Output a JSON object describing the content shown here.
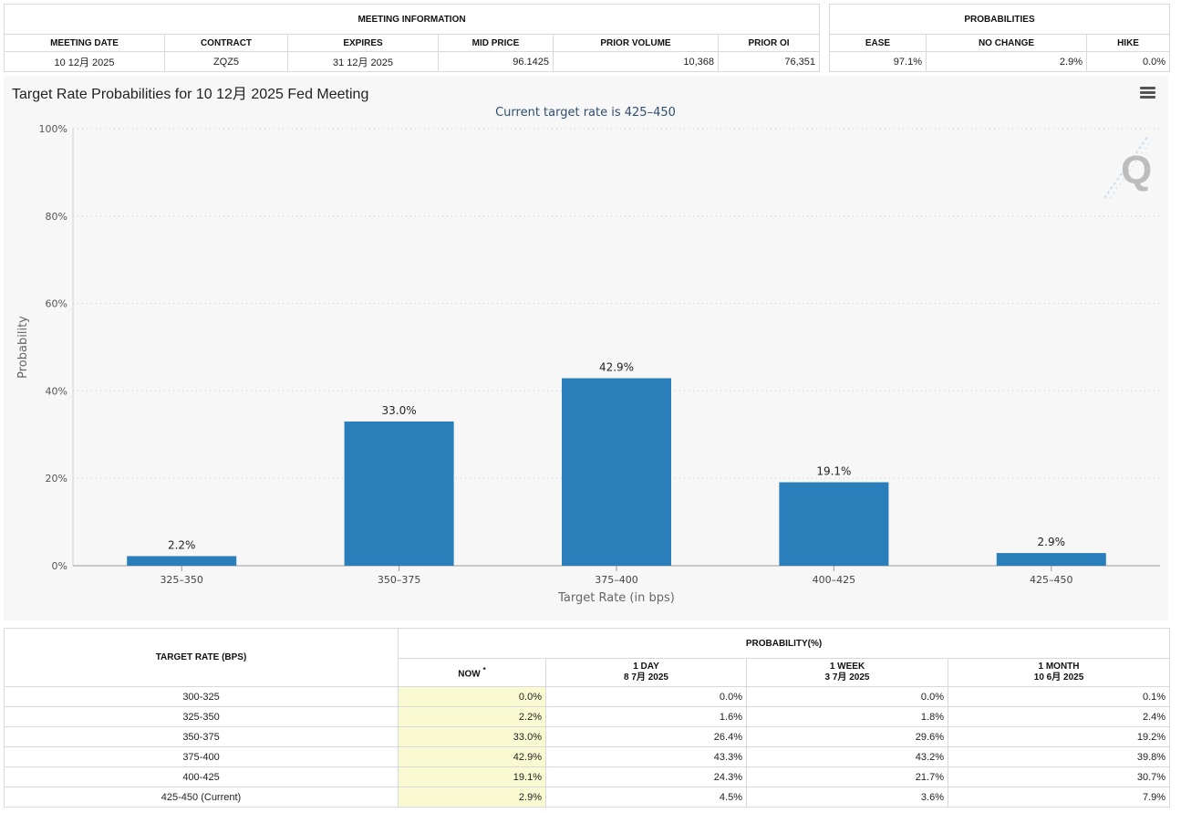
{
  "meeting_info": {
    "title": "MEETING INFORMATION",
    "headers": [
      "MEETING DATE",
      "CONTRACT",
      "EXPIRES",
      "MID PRICE",
      "PRIOR VOLUME",
      "PRIOR OI"
    ],
    "values": [
      "10 12月 2025",
      "ZQZ5",
      "31 12月 2025",
      "96.1425",
      "10,368",
      "76,351"
    ]
  },
  "probabilities": {
    "title": "PROBABILITIES",
    "headers": [
      "EASE",
      "NO CHANGE",
      "HIKE"
    ],
    "values": [
      "97.1%",
      "2.9%",
      "0.0%"
    ]
  },
  "chart": {
    "title": "Target Rate Probabilities for 10 12月 2025 Fed Meeting",
    "subtitle": "Current target rate is 425–450",
    "bar_color": "#2a7fba"
  },
  "chart_data": {
    "type": "bar",
    "categories": [
      "325–350",
      "350–375",
      "375–400",
      "400–425",
      "425–450"
    ],
    "values": [
      2.2,
      33.0,
      42.9,
      19.1,
      2.9
    ],
    "data_labels": [
      "2.2%",
      "33.0%",
      "42.9%",
      "19.1%",
      "2.9%"
    ],
    "xlabel": "Target Rate (in bps)",
    "ylabel": "Probability",
    "ylim": [
      0,
      100
    ],
    "yticks": [
      0,
      20,
      40,
      60,
      80,
      100
    ],
    "ytick_labels": [
      "0%",
      "20%",
      "40%",
      "60%",
      "80%",
      "100%"
    ],
    "grid": true
  },
  "history": {
    "target_header": "TARGET RATE (BPS)",
    "prob_header": "PROBABILITY(%)",
    "cols": [
      {
        "label": "NOW",
        "sub": ""
      },
      {
        "label": "1 DAY",
        "sub": "8 7月 2025"
      },
      {
        "label": "1 WEEK",
        "sub": "3 7月 2025"
      },
      {
        "label": "1 MONTH",
        "sub": "10 6月 2025"
      }
    ],
    "now_marker": "*",
    "rows": [
      {
        "rate": "300-325",
        "now": "0.0%",
        "day": "0.0%",
        "week": "0.0%",
        "month": "0.1%"
      },
      {
        "rate": "325-350",
        "now": "2.2%",
        "day": "1.6%",
        "week": "1.8%",
        "month": "2.4%"
      },
      {
        "rate": "350-375",
        "now": "33.0%",
        "day": "26.4%",
        "week": "29.6%",
        "month": "19.2%"
      },
      {
        "rate": "375-400",
        "now": "42.9%",
        "day": "43.3%",
        "week": "43.2%",
        "month": "39.8%"
      },
      {
        "rate": "400-425",
        "now": "19.1%",
        "day": "24.3%",
        "week": "21.7%",
        "month": "30.7%"
      },
      {
        "rate": "425-450 (Current)",
        "now": "2.9%",
        "day": "4.5%",
        "week": "3.6%",
        "month": "7.9%"
      }
    ]
  }
}
